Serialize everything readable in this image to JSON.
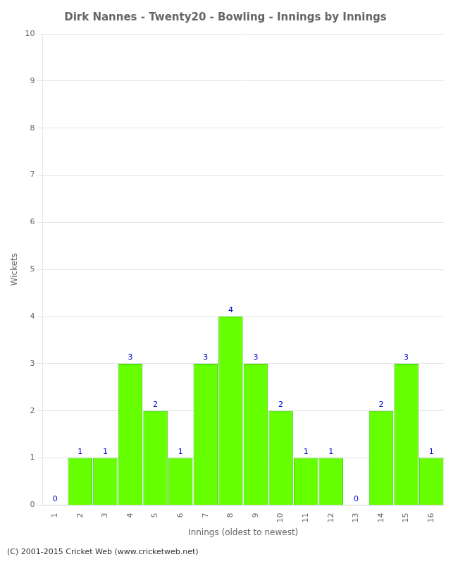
{
  "chart_data": {
    "type": "bar",
    "title": "Dirk Nannes - Twenty20 - Bowling - Innings by Innings",
    "xlabel": "Innings (oldest to newest)",
    "ylabel": "Wickets",
    "categories": [
      "1",
      "2",
      "3",
      "4",
      "5",
      "6",
      "7",
      "8",
      "9",
      "10",
      "11",
      "12",
      "13",
      "14",
      "15",
      "16"
    ],
    "values": [
      0,
      1,
      1,
      3,
      2,
      1,
      3,
      4,
      3,
      2,
      1,
      1,
      0,
      2,
      3,
      1
    ],
    "color": "#66ff00",
    "ylim": [
      0,
      10
    ],
    "yticks": [
      0,
      1,
      2,
      3,
      4,
      5,
      6,
      7,
      8,
      9,
      10
    ],
    "grid": true,
    "data_labels": true,
    "annotations": [
      "(C) 2001-2015 Cricket Web (www.cricketweb.net)"
    ]
  }
}
